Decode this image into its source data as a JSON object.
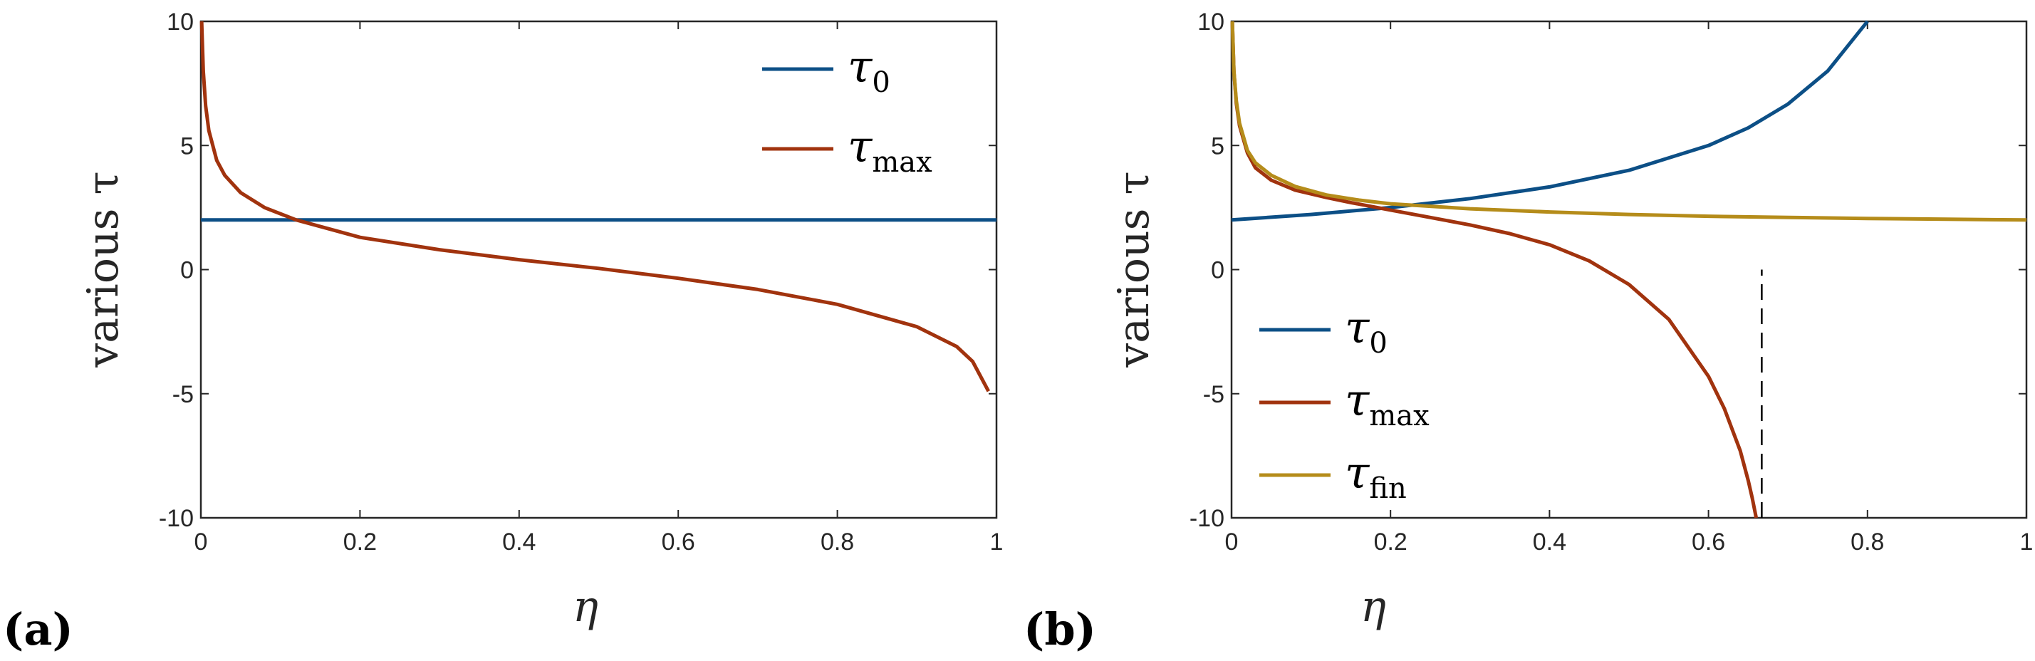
{
  "colors": {
    "blue": "#0c4f86",
    "red": "#a1330e",
    "gold": "#b58c1a",
    "axis": "#262626"
  },
  "chart_data": [
    {
      "id": "a",
      "type": "line",
      "panel_label": "(a)",
      "xlabel": "η",
      "ylabel": "various τ",
      "xlim": [
        0,
        1
      ],
      "ylim": [
        -10,
        10
      ],
      "xticks": [
        0,
        0.2,
        0.4,
        0.6,
        0.8,
        1
      ],
      "xticklabels": [
        "0",
        "0.2",
        "0.4",
        "0.6",
        "0.8",
        "1"
      ],
      "yticks": [
        -10,
        -5,
        0,
        5,
        10
      ],
      "yticklabels": [
        "-10",
        "-5",
        "0",
        "5",
        "10"
      ],
      "legend_position": "top-right",
      "series": [
        {
          "name": "τ0",
          "sym": "τ",
          "sub": "0",
          "color": "#0c4f86",
          "x": [
            0,
            0.2,
            0.4,
            0.6,
            0.8,
            1.0
          ],
          "y": [
            2,
            2,
            2,
            2,
            2,
            2
          ]
        },
        {
          "name": "τmax",
          "sym": "τ",
          "sub": "max",
          "color": "#a1330e",
          "x": [
            0.001,
            0.003,
            0.006,
            0.01,
            0.02,
            0.03,
            0.05,
            0.08,
            0.12,
            0.2,
            0.3,
            0.4,
            0.5,
            0.6,
            0.7,
            0.8,
            0.9,
            0.95,
            0.97,
            0.99
          ],
          "y": [
            10,
            8.0,
            6.6,
            5.6,
            4.4,
            3.8,
            3.1,
            2.5,
            2.0,
            1.3,
            0.8,
            0.4,
            0.05,
            -0.35,
            -0.8,
            -1.4,
            -2.3,
            -3.1,
            -3.7,
            -4.9
          ]
        }
      ]
    },
    {
      "id": "b",
      "type": "line",
      "panel_label": "(b)",
      "xlabel": "η",
      "ylabel": "various τ",
      "xlim": [
        0,
        1
      ],
      "ylim": [
        -10,
        10
      ],
      "xticks": [
        0,
        0.2,
        0.4,
        0.6,
        0.8,
        1
      ],
      "xticklabels": [
        "0",
        "0.2",
        "0.4",
        "0.6",
        "0.8",
        "1"
      ],
      "yticks": [
        -10,
        -5,
        0,
        5,
        10
      ],
      "yticklabels": [
        "-10",
        "-5",
        "0",
        "5",
        "10"
      ],
      "legend_position": "bottom-left",
      "vline": {
        "x": 0.667,
        "y": [
          -10,
          0
        ],
        "style": "dashed"
      },
      "series": [
        {
          "name": "τ0",
          "sym": "τ",
          "sub": "0",
          "color": "#0c4f86",
          "x": [
            0,
            0.1,
            0.2,
            0.3,
            0.4,
            0.5,
            0.6,
            0.65,
            0.7,
            0.75,
            0.8
          ],
          "y": [
            2.0,
            2.22,
            2.5,
            2.86,
            3.33,
            4.0,
            5.0,
            5.71,
            6.67,
            8.0,
            10.0
          ]
        },
        {
          "name": "τmax",
          "sym": "τ",
          "sub": "max",
          "color": "#a1330e",
          "x": [
            0.001,
            0.003,
            0.006,
            0.01,
            0.02,
            0.03,
            0.05,
            0.08,
            0.12,
            0.15,
            0.2,
            0.25,
            0.3,
            0.35,
            0.4,
            0.45,
            0.5,
            0.55,
            0.6,
            0.62,
            0.64,
            0.65,
            0.655,
            0.66
          ],
          "y": [
            10,
            8.0,
            6.7,
            5.8,
            4.7,
            4.1,
            3.6,
            3.2,
            2.9,
            2.7,
            2.4,
            2.1,
            1.8,
            1.45,
            1.0,
            0.35,
            -0.6,
            -2.0,
            -4.3,
            -5.6,
            -7.3,
            -8.5,
            -9.2,
            -10
          ]
        },
        {
          "name": "τfin",
          "sym": "τ",
          "sub": "fin",
          "color": "#b58c1a",
          "x": [
            0.001,
            0.003,
            0.006,
            0.01,
            0.02,
            0.03,
            0.05,
            0.08,
            0.12,
            0.16,
            0.2,
            0.25,
            0.3,
            0.4,
            0.5,
            0.6,
            0.7,
            0.8,
            0.9,
            1.0
          ],
          "y": [
            10,
            8.0,
            6.8,
            5.9,
            4.8,
            4.3,
            3.8,
            3.35,
            3.0,
            2.8,
            2.65,
            2.55,
            2.45,
            2.32,
            2.22,
            2.15,
            2.1,
            2.06,
            2.03,
            2.0
          ]
        }
      ]
    }
  ]
}
